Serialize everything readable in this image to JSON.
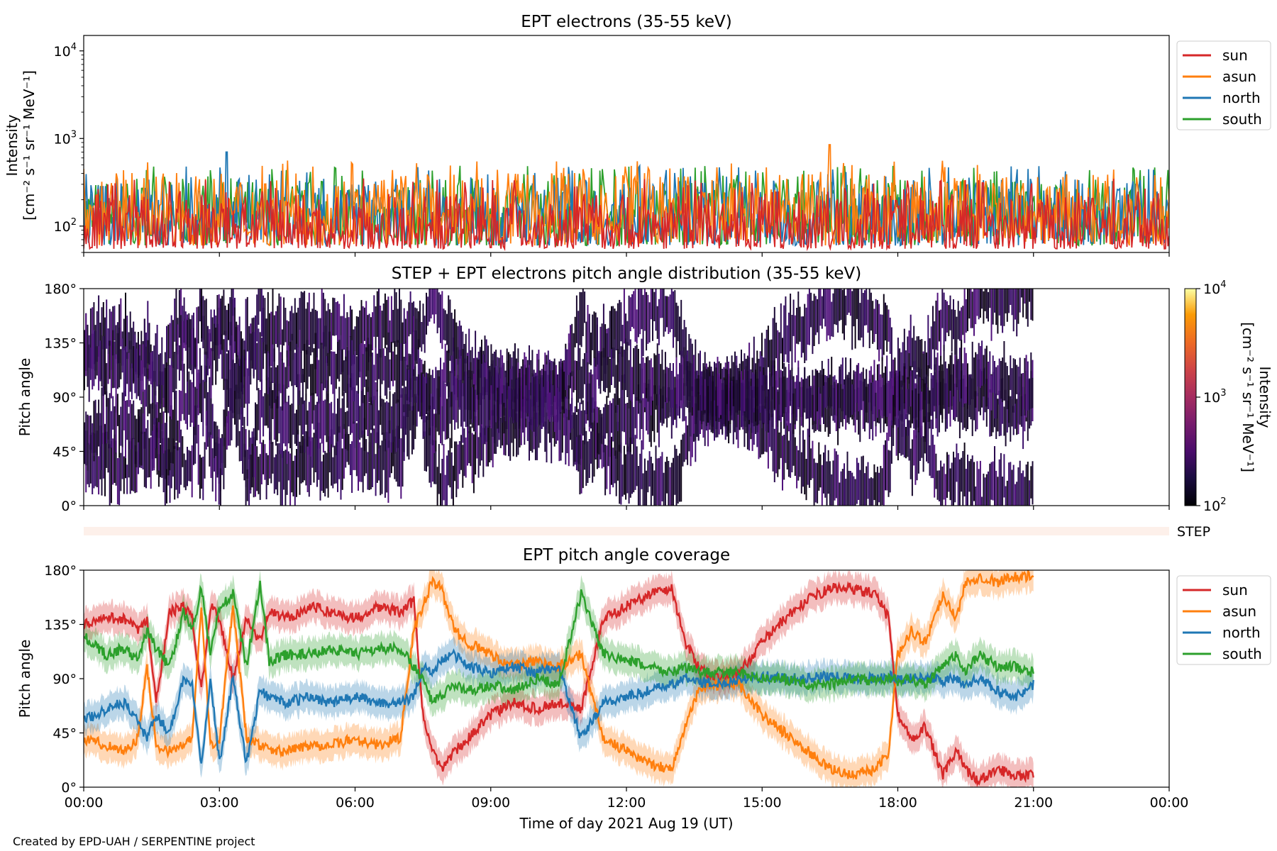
{
  "figure": {
    "credit": "Created by EPD-UAH / SERPENTINE project",
    "xlabel": "Time of day 2021 Aug 19 (UT)"
  },
  "colors": {
    "sun": "#d62728",
    "asun": "#ff7f0e",
    "north": "#1f77b4",
    "south": "#2ca02c",
    "step_bar": "#fdf0ea"
  },
  "panels": {
    "p1": {
      "title": "EPT electrons (35-55 keV)",
      "ylabel_line1": "Intensity",
      "ylabel_line2": "[cm⁻² s⁻¹ sr⁻¹ MeV⁻¹]"
    },
    "p2": {
      "title": "STEP + EPT electrons pitch angle distribution (35-55 keV)",
      "ylabel": "Pitch angle",
      "cbar_label_line1": "Intensity",
      "cbar_label_line2": "[cm⁻² s⁻¹ sr⁻¹ MeV⁻¹]"
    },
    "step": {
      "label": "STEP"
    },
    "p3": {
      "title": "EPT pitch angle coverage",
      "ylabel": "Pitch angle"
    }
  },
  "chart_data": [
    {
      "type": "line",
      "title": "EPT electrons (35-55 keV)",
      "ylabel": "Intensity [cm^-2 s^-1 sr^-1 MeV^-1]",
      "yscale": "log",
      "ylim": [
        50,
        15000
      ],
      "yticks": [
        "10^2",
        "10^3",
        "10^4"
      ],
      "xlim": [
        "00:00",
        "24:00"
      ],
      "legend": "right-outside-top",
      "series": [
        {
          "name": "sun",
          "color": "#d62728",
          "level_range": [
            55,
            250
          ]
        },
        {
          "name": "asun",
          "color": "#ff7f0e",
          "level_range": [
            60,
            400
          ],
          "peaks": [
            {
              "x": "16:30",
              "y": 850
            }
          ]
        },
        {
          "name": "north",
          "color": "#1f77b4",
          "level_range": [
            60,
            350
          ],
          "peaks": [
            {
              "x": "03:10",
              "y": 700
            }
          ]
        },
        {
          "name": "south",
          "color": "#2ca02c",
          "level_range": [
            60,
            350
          ]
        }
      ]
    },
    {
      "type": "heatmap",
      "title": "STEP + EPT electrons pitch angle distribution (35-55 keV)",
      "ylabel": "Pitch angle",
      "ylim": [
        0,
        180
      ],
      "yticks": [
        "0°",
        "45°",
        "90°",
        "135°",
        "180°"
      ],
      "xlim": [
        "00:00",
        "24:00"
      ],
      "data_end": "21:00",
      "colorbar": {
        "scale": "log",
        "range": [
          100,
          10000
        ],
        "ticks": [
          "10^2",
          "10^3",
          "10^4"
        ],
        "label": "Intensity [cm^-2 s^-1 sr^-1 MeV^-1]",
        "colormap": "inferno"
      },
      "values_note": "intensity near 10^2 in covered pitch-angle bands"
    },
    {
      "type": "line",
      "title": "EPT pitch angle coverage",
      "ylabel": "Pitch angle",
      "ylim": [
        0,
        180
      ],
      "yticks": [
        "0°",
        "45°",
        "90°",
        "135°",
        "180°"
      ],
      "xlabel": "Time of day 2021 Aug 19 (UT)",
      "xticks": [
        "00:00",
        "03:00",
        "06:00",
        "09:00",
        "12:00",
        "15:00",
        "18:00",
        "21:00",
        "00:00"
      ],
      "xlim_hours": [
        0,
        24
      ],
      "band_halfwidth_deg": 12,
      "legend": "right-outside-top",
      "series": [
        {
          "name": "sun",
          "color": "#d62728",
          "x": [
            0,
            0.5,
            0.9,
            1.2,
            1.4,
            1.6,
            1.9,
            2.2,
            2.4,
            2.6,
            2.8,
            3.0,
            3.3,
            3.6,
            3.9,
            4.1,
            4.5,
            5.0,
            5.5,
            6.0,
            6.5,
            7.0,
            7.3,
            7.5,
            7.7,
            7.9,
            8.2,
            8.5,
            9.0,
            9.5,
            10.0,
            10.5,
            11.0,
            11.5,
            12.0,
            12.5,
            13.0,
            13.3,
            13.6,
            14.0,
            14.5,
            15.0,
            15.5,
            16.0,
            16.5,
            17.0,
            17.5,
            17.8,
            18.0,
            18.3,
            18.6,
            19.0,
            19.3,
            19.5,
            19.8,
            20.2,
            20.6,
            21.0
          ],
          "y": [
            135,
            140,
            140,
            130,
            138,
            70,
            145,
            150,
            140,
            80,
            150,
            140,
            90,
            140,
            120,
            145,
            140,
            150,
            145,
            140,
            150,
            145,
            155,
            60,
            30,
            15,
            30,
            40,
            60,
            70,
            65,
            70,
            65,
            140,
            150,
            160,
            165,
            120,
            100,
            90,
            95,
            120,
            140,
            155,
            165,
            165,
            160,
            140,
            60,
            40,
            50,
            10,
            30,
            15,
            5,
            15,
            10,
            10
          ]
        },
        {
          "name": "asun",
          "color": "#ff7f0e",
          "x": [
            0,
            0.5,
            0.9,
            1.2,
            1.4,
            1.6,
            1.9,
            2.2,
            2.4,
            2.6,
            2.8,
            3.0,
            3.3,
            3.6,
            3.9,
            4.1,
            4.5,
            5.0,
            5.5,
            6.0,
            6.5,
            7.0,
            7.3,
            7.5,
            7.7,
            7.9,
            8.2,
            8.5,
            9.0,
            9.5,
            10.0,
            10.5,
            11.0,
            11.5,
            12.0,
            12.5,
            13.0,
            13.3,
            13.6,
            14.0,
            14.5,
            15.0,
            15.5,
            16.0,
            16.5,
            17.0,
            17.5,
            17.8,
            18.0,
            18.3,
            18.6,
            19.0,
            19.3,
            19.5,
            19.8,
            20.2,
            20.6,
            21.0
          ],
          "y": [
            40,
            35,
            30,
            40,
            100,
            35,
            30,
            35,
            40,
            150,
            35,
            40,
            150,
            40,
            35,
            30,
            30,
            35,
            35,
            40,
            35,
            40,
            130,
            150,
            170,
            165,
            130,
            120,
            110,
            100,
            105,
            100,
            110,
            40,
            30,
            20,
            15,
            50,
            80,
            85,
            85,
            60,
            45,
            30,
            15,
            10,
            15,
            30,
            110,
            130,
            120,
            160,
            140,
            170,
            175,
            170,
            175,
            175
          ]
        },
        {
          "name": "north",
          "color": "#1f77b4",
          "x": [
            0,
            0.5,
            0.9,
            1.2,
            1.4,
            1.6,
            1.9,
            2.2,
            2.4,
            2.6,
            2.8,
            3.0,
            3.3,
            3.6,
            3.9,
            4.1,
            4.5,
            5.0,
            5.5,
            6.0,
            6.5,
            7.0,
            7.3,
            7.5,
            7.7,
            7.9,
            8.2,
            8.5,
            9.0,
            9.5,
            10.0,
            10.5,
            11.0,
            11.5,
            12.0,
            12.5,
            13.0,
            13.3,
            13.6,
            14.0,
            14.5,
            15.0,
            15.5,
            16.0,
            16.5,
            17.0,
            17.5,
            17.8,
            18.0,
            18.3,
            18.6,
            19.0,
            19.3,
            19.5,
            19.8,
            20.2,
            20.6,
            21.0
          ],
          "y": [
            55,
            65,
            70,
            55,
            40,
            60,
            45,
            90,
            85,
            20,
            90,
            20,
            90,
            20,
            80,
            75,
            70,
            75,
            70,
            75,
            70,
            70,
            75,
            100,
            95,
            105,
            110,
            100,
            95,
            100,
            95,
            100,
            40,
            70,
            75,
            80,
            85,
            90,
            88,
            85,
            90,
            92,
            90,
            90,
            92,
            90,
            90,
            92,
            90,
            90,
            92,
            88,
            90,
            85,
            90,
            80,
            75,
            85
          ]
        },
        {
          "name": "south",
          "color": "#2ca02c",
          "x": [
            0,
            0.5,
            0.9,
            1.2,
            1.4,
            1.6,
            1.9,
            2.2,
            2.4,
            2.6,
            2.8,
            3.0,
            3.3,
            3.6,
            3.9,
            4.1,
            4.5,
            5.0,
            5.5,
            6.0,
            6.5,
            7.0,
            7.3,
            7.5,
            7.7,
            7.9,
            8.2,
            8.5,
            9.0,
            9.5,
            10.0,
            10.5,
            11.0,
            11.5,
            12.0,
            12.5,
            13.0,
            13.3,
            13.6,
            14.0,
            14.5,
            15.0,
            15.5,
            16.0,
            16.5,
            17.0,
            17.5,
            17.8,
            18.0,
            18.3,
            18.6,
            19.0,
            19.3,
            19.5,
            19.8,
            20.2,
            20.6,
            21.0
          ],
          "y": [
            125,
            110,
            115,
            105,
            130,
            115,
            100,
            145,
            130,
            165,
            110,
            150,
            160,
            100,
            170,
            105,
            110,
            110,
            115,
            110,
            115,
            115,
            100,
            90,
            70,
            75,
            85,
            80,
            85,
            80,
            90,
            85,
            160,
            110,
            105,
            100,
            95,
            100,
            95,
            95,
            95,
            90,
            90,
            85,
            85,
            90,
            88,
            90,
            88,
            90,
            85,
            100,
            110,
            95,
            110,
            100,
            100,
            95
          ]
        }
      ]
    }
  ]
}
